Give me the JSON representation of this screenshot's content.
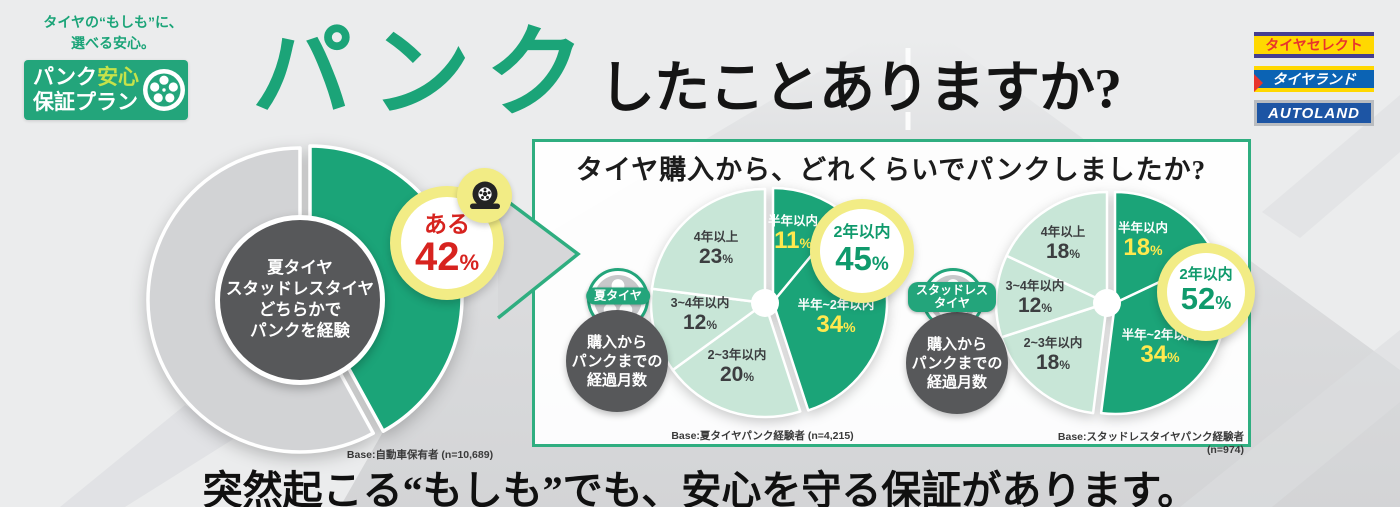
{
  "percent_sign": "%",
  "colors": {
    "green": "#1ba478",
    "green_light": "#c8e6d7",
    "grey_slice": "#d2d3d5",
    "dark_circle": "#57585a",
    "yellow_ring": "#f2ec85",
    "yellow_label": "#ffe94e",
    "red": "#d7231f",
    "panel_border": "#2fae80"
  },
  "header": {
    "tagline_lines": [
      "タイヤの“もしも”に、",
      "選べる安心。"
    ],
    "badge": {
      "line1_a": "パンク",
      "line1_b": "安心",
      "line2": "保証プラン"
    },
    "title_highlight": "パンク",
    "title_rest": "したことありますか?"
  },
  "partner_logos": [
    "タイヤセレクト",
    "タイヤランド",
    "AUTOLAND"
  ],
  "panel": {
    "heading": "タイヤ購入から、どれくらいでパンクしましたか?"
  },
  "footer": {
    "text": "突然起こる“もしも”でも、安心を守る保証があります。"
  },
  "chart_data": [
    {
      "type": "pie",
      "name": "パンク経験率",
      "center_lines": [
        "夏タイヤ",
        "スタッドレスタイヤ",
        "どちらかで",
        "パンクを経験"
      ],
      "callout": {
        "label": "ある",
        "value": 42
      },
      "base": "Base:自動車保有者 (n=10,689)",
      "slices": [
        {
          "label": "ある",
          "value": 42,
          "emph": true
        },
        {
          "label": "",
          "value": 58,
          "emph": false
        }
      ]
    },
    {
      "type": "pie",
      "name": "夏タイヤ 購入からパンクまでの経過月数",
      "badge_lines": [
        "夏タイヤ"
      ],
      "info_lines": [
        "購入から",
        "パンクまでの",
        "経過月数"
      ],
      "callout": {
        "label": "2年以内",
        "value": 45
      },
      "base": "Base:夏タイヤパンク経験者 (n=4,215)",
      "slices": [
        {
          "label": "半年以内",
          "value": 11,
          "emph": true
        },
        {
          "label": "半年~2年以内",
          "value": 34,
          "emph": true
        },
        {
          "label": "2~3年以内",
          "value": 20,
          "emph": false
        },
        {
          "label": "3~4年以内",
          "value": 12,
          "emph": false
        },
        {
          "label": "4年以上",
          "value": 23,
          "emph": false
        }
      ]
    },
    {
      "type": "pie",
      "name": "スタッドレスタイヤ 購入からパンクまでの経過月数",
      "badge_lines": [
        "スタッドレス",
        "タイヤ"
      ],
      "info_lines": [
        "購入から",
        "パンクまでの",
        "経過月数"
      ],
      "callout": {
        "label": "2年以内",
        "value": 52
      },
      "base": "Base:スタッドレスタイヤパンク経験者 (n=974)",
      "slices": [
        {
          "label": "半年以内",
          "value": 18,
          "emph": true
        },
        {
          "label": "半年~2年以内",
          "value": 34,
          "emph": true
        },
        {
          "label": "2~3年以内",
          "value": 18,
          "emph": false
        },
        {
          "label": "3~4年以内",
          "value": 12,
          "emph": false
        },
        {
          "label": "4年以上",
          "value": 18,
          "emph": false
        }
      ]
    }
  ]
}
